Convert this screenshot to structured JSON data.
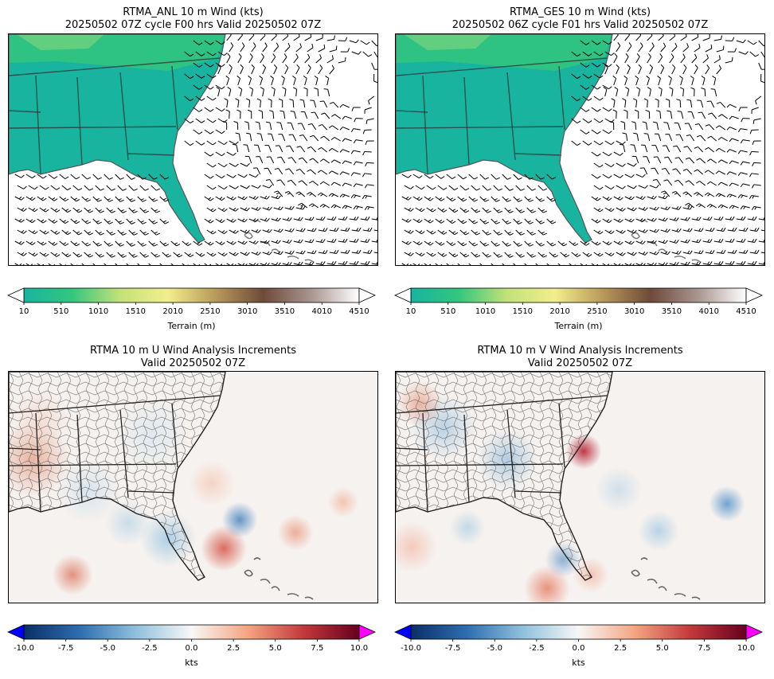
{
  "panels": [
    {
      "title_line1": "RTMA_ANL 10 m Wind (kts)",
      "title_line2": "20250502 07Z cycle F00 hrs Valid 20250502 07Z"
    },
    {
      "title_line1": "RTMA_GES 10 m Wind (kts)",
      "title_line2": "20250502 06Z cycle F01 hrs Valid 20250502 07Z"
    },
    {
      "title_line1": "RTMA 10 m U Wind Analysis Increments",
      "title_line2": "Valid 20250502 07Z"
    },
    {
      "title_line1": "RTMA 10 m V Wind Analysis Increments",
      "title_line2": "Valid 20250502 07Z"
    }
  ],
  "terrain_colorbar": {
    "label": "Terrain (m)",
    "ticks": [
      "10",
      "510",
      "1010",
      "1510",
      "2010",
      "2510",
      "3010",
      "3510",
      "4010",
      "4510"
    ]
  },
  "increment_colorbar": {
    "label": "kts",
    "ticks": [
      "-10.0",
      "-7.5",
      "-5.0",
      "-2.5",
      "0.0",
      "2.5",
      "5.0",
      "7.5",
      "10.0"
    ]
  },
  "colors": {
    "terrain": [
      "#18b4a0",
      "#33c67e",
      "#c2e17a",
      "#f2ee8e",
      "#b89a5a",
      "#6e4a3a",
      "#a89690",
      "#ffffff"
    ],
    "increment": [
      "#0a2f66",
      "#2f6db0",
      "#8fc0dd",
      "#f7f7f7",
      "#f4a582",
      "#c3393b",
      "#67001f"
    ],
    "under_extend": "#0000ff",
    "over_extend": "#ff00ff"
  }
}
